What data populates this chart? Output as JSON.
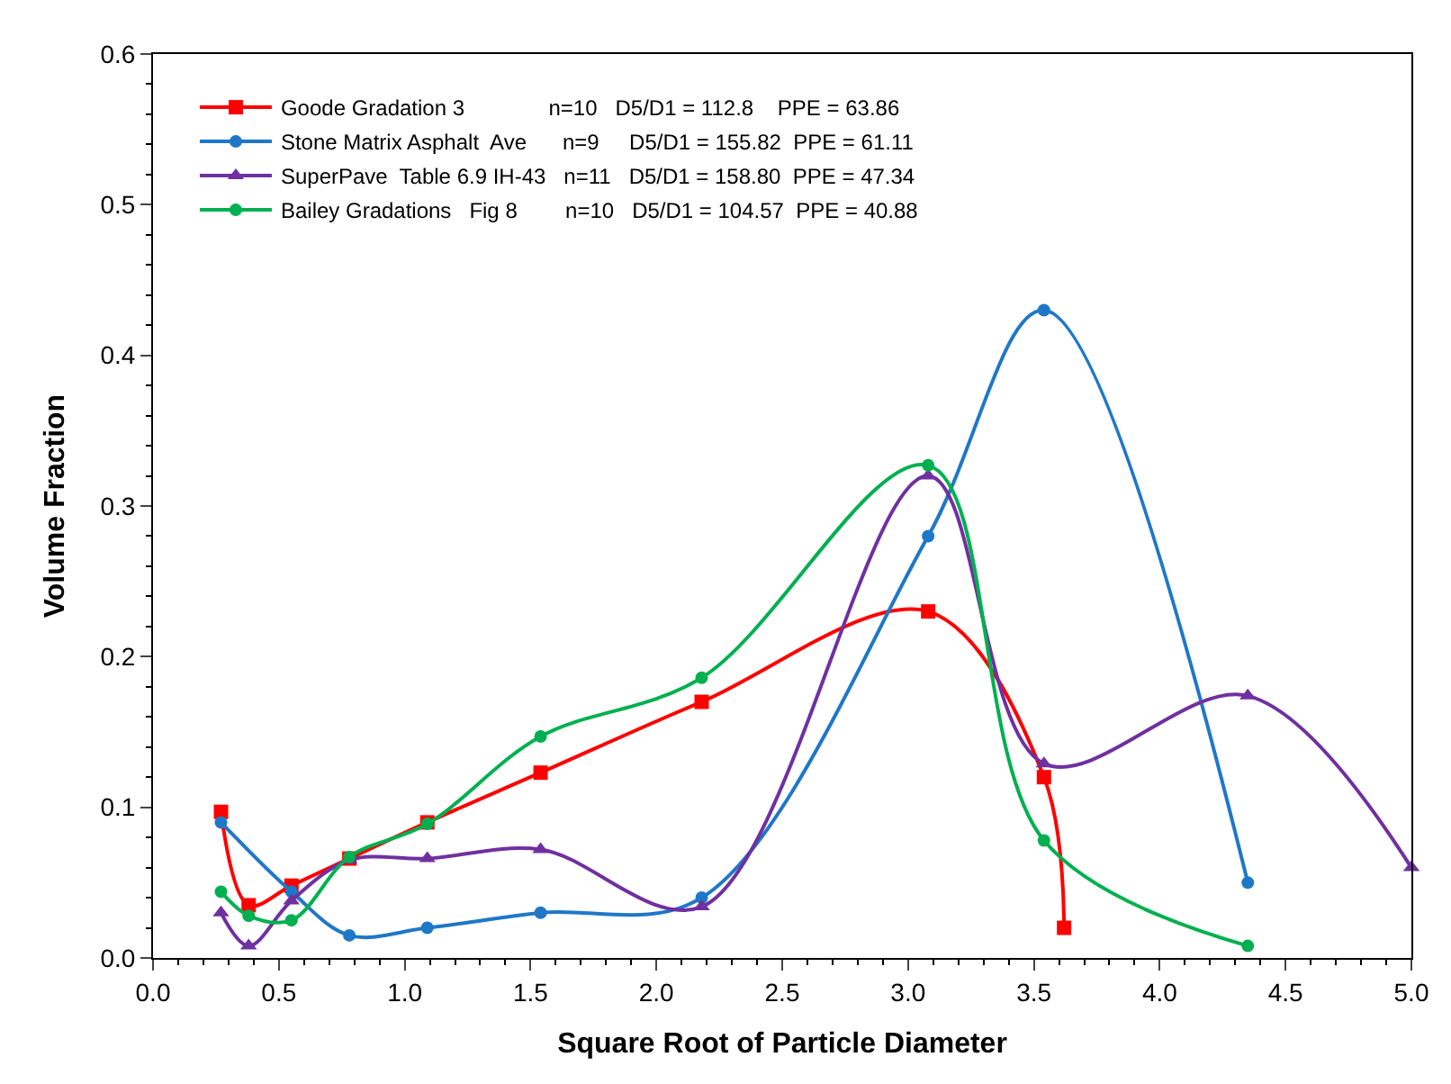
{
  "chart_data": {
    "type": "line",
    "xlabel": "Square Root of Particle Diameter",
    "ylabel": "Volume Fraction",
    "xlim": [
      0,
      5
    ],
    "xticks": [
      {
        "value": 0,
        "label": "0.0"
      },
      0.5,
      {
        "value": 1,
        "label": "1.0"
      },
      1.5,
      {
        "value": 2,
        "label": "2.0"
      },
      2.5,
      {
        "value": 3,
        "label": "3.0"
      },
      3.5,
      {
        "value": 4,
        "label": "4.0"
      },
      4.5,
      {
        "value": 5,
        "label": "5.0"
      }
    ],
    "ylim": [
      0,
      0.6
    ],
    "yticks": [
      {
        "value": 0,
        "label": "0.0"
      },
      0.1,
      0.2,
      0.3,
      0.4,
      0.5,
      0.6
    ],
    "legend": "top left",
    "series": [
      {
        "name": "Goode Gradation 3              n=10   D5/D1 = 112.8    PPE = 63.86",
        "color": "#ff0000",
        "marker": "square",
        "x": [
          0.27,
          0.38,
          0.55,
          0.78,
          1.09,
          1.54,
          2.18,
          3.08,
          3.54,
          3.62
        ],
        "values": [
          0.097,
          0.035,
          0.048,
          0.066,
          0.09,
          0.123,
          0.17,
          0.23,
          0.12,
          0.02
        ]
      },
      {
        "name": "Stone Matrix Asphalt  Ave      n=9     D5/D1 = 155.82  PPE = 61.11",
        "color": "#1f77c8",
        "marker": "circle",
        "x": [
          0.27,
          0.55,
          0.78,
          1.09,
          1.54,
          2.18,
          3.08,
          3.54,
          4.35
        ],
        "values": [
          0.09,
          0.044,
          0.015,
          0.02,
          0.03,
          0.04,
          0.28,
          0.43,
          0.05
        ]
      },
      {
        "name": "SuperPave  Table 6.9 IH-43   n=11   D5/D1 = 158.80  PPE = 47.34",
        "color": "#7030a0",
        "marker": "triangle",
        "x": [
          0.27,
          0.38,
          0.55,
          0.78,
          1.09,
          1.54,
          2.18,
          3.08,
          3.54,
          4.35,
          5.0
        ],
        "values": [
          0.03,
          0.008,
          0.038,
          0.065,
          0.066,
          0.072,
          0.034,
          0.32,
          0.129,
          0.174,
          0.06
        ]
      },
      {
        "name": "Bailey Gradations   Fig 8        n=10   D5/D1 = 104.57  PPE = 40.88",
        "color": "#00b050",
        "marker": "circle",
        "x": [
          0.27,
          0.38,
          0.55,
          0.78,
          1.09,
          1.54,
          2.18,
          3.08,
          3.54,
          4.35
        ],
        "values": [
          0.044,
          0.028,
          0.025,
          0.067,
          0.089,
          0.147,
          0.186,
          0.327,
          0.078,
          0.008
        ]
      }
    ]
  }
}
